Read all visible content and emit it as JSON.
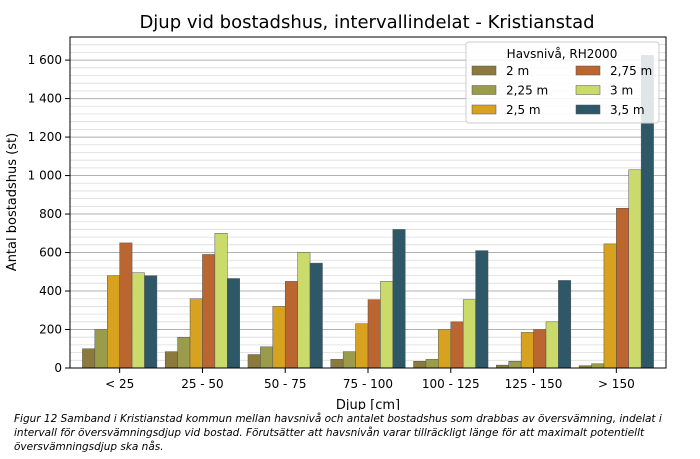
{
  "chart_data": {
    "type": "bar",
    "title": "Djup vid bostadshus, intervallindelat - Kristianstad",
    "xlabel": "Djup [cm]",
    "ylabel": "Antal bostadshus (st)",
    "ylim": [
      0,
      1720
    ],
    "yticks": [
      0,
      200,
      400,
      600,
      800,
      1000,
      1200,
      1400,
      1600
    ],
    "ytick_labels": [
      "0",
      "200",
      "400",
      "600",
      "800",
      "1 000",
      "1 200",
      "1 400",
      "1 600"
    ],
    "grid": true,
    "categories": [
      "< 25",
      "25 - 50",
      "50 - 75",
      "75 - 100",
      "100 - 125",
      "125 - 150",
      "> 150"
    ],
    "legend": {
      "title": "Havsnivå, RH2000",
      "position": "top-right"
    },
    "series": [
      {
        "name": "2 m",
        "color": "#8b7a3c",
        "values": [
          100,
          85,
          70,
          45,
          35,
          15,
          12
        ]
      },
      {
        "name": "2,25 m",
        "color": "#9b9b4c",
        "values": [
          200,
          160,
          110,
          85,
          45,
          35,
          22
        ]
      },
      {
        "name": "2,5 m",
        "color": "#d6a21f",
        "values": [
          480,
          360,
          320,
          230,
          200,
          185,
          645
        ]
      },
      {
        "name": "2,75 m",
        "color": "#bb6530",
        "values": [
          650,
          590,
          450,
          355,
          240,
          200,
          830
        ]
      },
      {
        "name": "3 m",
        "color": "#cbdb6b",
        "values": [
          495,
          700,
          600,
          450,
          355,
          240,
          1030
        ]
      },
      {
        "name": "3,5 m",
        "color": "#2e5768",
        "values": [
          480,
          465,
          545,
          720,
          610,
          455,
          1625
        ]
      }
    ]
  },
  "caption": "Figur 12 Samband i Kristianstad kommun mellan havsnivå och antalet bostadshus som drabbas av översvämning, indelat i intervall för översvämningsdjup vid bostad. Förutsätter att havsnivån varar tillräckligt länge för att maximalt potentiellt översvämningsdjup ska nås."
}
